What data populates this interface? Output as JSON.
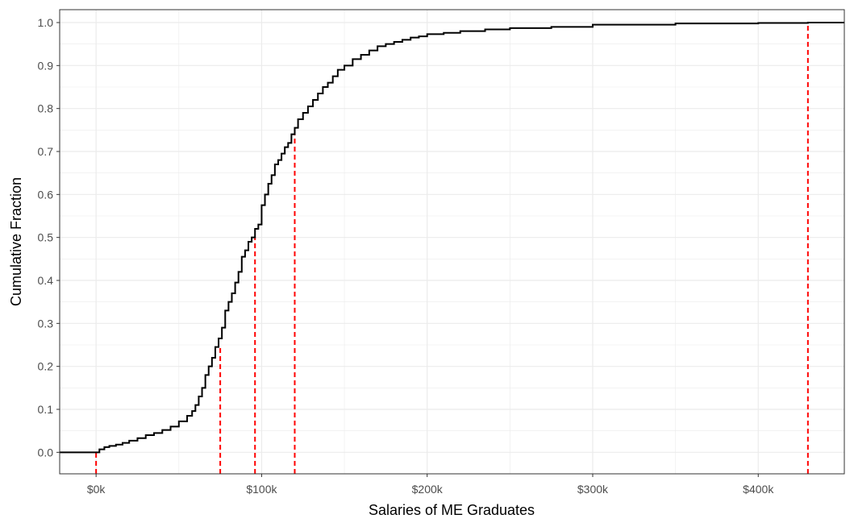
{
  "chart_data": {
    "type": "line",
    "title": "",
    "xlabel": "Salaries of ME Graduates",
    "ylabel": "Cumulative Fraction",
    "xlim": [
      -22000,
      452000
    ],
    "ylim": [
      -0.05,
      1.03
    ],
    "x_ticks": [
      0,
      100000,
      200000,
      300000,
      400000
    ],
    "x_tick_labels": [
      "$0k",
      "$100k",
      "$200k",
      "$300k",
      "$400k"
    ],
    "y_ticks": [
      0.0,
      0.1,
      0.2,
      0.3,
      0.4,
      0.5,
      0.6,
      0.7,
      0.8,
      0.9,
      1.0
    ],
    "y_tick_labels": [
      "0.0",
      "0.1",
      "0.2",
      "0.3",
      "0.4",
      "0.5",
      "0.6",
      "0.7",
      "0.8",
      "0.9",
      "1.0"
    ],
    "x_minor_ticks": [
      50000,
      150000,
      250000,
      350000
    ],
    "y_minor_ticks": [
      0.05,
      0.15,
      0.25,
      0.35,
      0.45,
      0.55,
      0.65,
      0.75,
      0.85,
      0.95
    ],
    "grid": true,
    "legend": "none",
    "colors": {
      "ecdf": "#000000",
      "reference_lines": "#ff0000",
      "grid": "#ebebeb",
      "panel_border": "#333333"
    },
    "series": [
      {
        "type": "step",
        "x": [
          -22000,
          0,
          2000,
          5000,
          8000,
          12000,
          16000,
          20000,
          25000,
          30000,
          35000,
          40000,
          45000,
          50000,
          55000,
          58000,
          60000,
          62000,
          64000,
          66000,
          68000,
          70000,
          72000,
          74000,
          76000,
          78000,
          80000,
          82000,
          84000,
          86000,
          88000,
          90000,
          92000,
          94000,
          96000,
          98000,
          100000,
          102000,
          104000,
          106000,
          108000,
          110000,
          112000,
          114000,
          116000,
          118000,
          120000,
          122000,
          125000,
          128000,
          131000,
          134000,
          137000,
          140000,
          143000,
          146000,
          150000,
          155000,
          160000,
          165000,
          170000,
          175000,
          180000,
          185000,
          190000,
          195000,
          200000,
          210000,
          220000,
          235000,
          250000,
          275000,
          300000,
          350000,
          400000,
          430000,
          452000
        ],
        "y": [
          0.0,
          0.0,
          0.007,
          0.012,
          0.015,
          0.018,
          0.022,
          0.027,
          0.033,
          0.04,
          0.045,
          0.052,
          0.06,
          0.072,
          0.085,
          0.096,
          0.11,
          0.13,
          0.15,
          0.18,
          0.2,
          0.22,
          0.245,
          0.265,
          0.29,
          0.33,
          0.35,
          0.37,
          0.395,
          0.42,
          0.455,
          0.47,
          0.49,
          0.5,
          0.52,
          0.53,
          0.575,
          0.6,
          0.625,
          0.645,
          0.67,
          0.68,
          0.695,
          0.71,
          0.72,
          0.74,
          0.755,
          0.775,
          0.79,
          0.805,
          0.82,
          0.835,
          0.85,
          0.86,
          0.875,
          0.89,
          0.9,
          0.915,
          0.925,
          0.935,
          0.945,
          0.95,
          0.955,
          0.96,
          0.965,
          0.968,
          0.973,
          0.976,
          0.98,
          0.984,
          0.987,
          0.99,
          0.995,
          0.998,
          0.999,
          1.0,
          1.0
        ]
      }
    ],
    "reference_lines": [
      {
        "x": 0,
        "y_top": 0.0
      },
      {
        "x": 75000,
        "y_top": 0.25
      },
      {
        "x": 96000,
        "y_top": 0.5
      },
      {
        "x": 120000,
        "y_top": 0.75
      },
      {
        "x": 430000,
        "y_top": 1.0
      }
    ]
  }
}
